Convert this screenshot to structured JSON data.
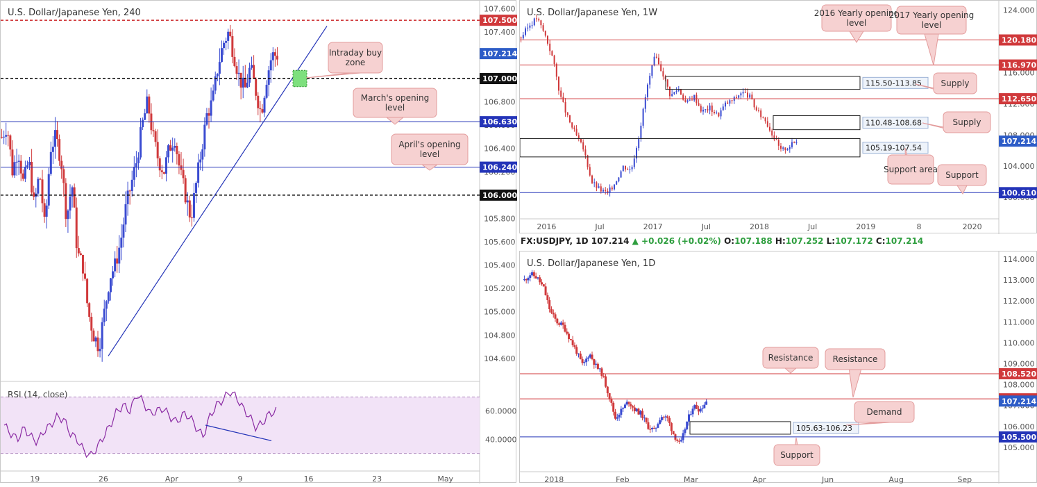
{
  "colors": {
    "up": "#3a4bd1",
    "down": "#d0393b",
    "red_line": "#d0393b",
    "blue_line": "#2434b8",
    "black_line": "#111111",
    "price_tag": "#2d5cc7",
    "rsi_line": "#8a2aa3",
    "rsi_bg": "#f2e3f7",
    "callout_bg": "#f6d1d1",
    "callout_border": "#e39c9c",
    "green_zone": "#7ee07e"
  },
  "ticker": {
    "symbol": "FX:USDJPY, 1D",
    "last": "107.214",
    "change": "▲ +0.026 (+0.02%)",
    "o_label": "O:",
    "o": "107.188",
    "h_label": "H:",
    "h": "107.252",
    "l_label": "L:",
    "l": "107.172",
    "c_label": "C:",
    "c": "107.214"
  },
  "chart_data": [
    {
      "type": "candlestick",
      "title": "U.S. Dollar/Japanese Yen, 240",
      "ylim": [
        104.45,
        107.62
      ],
      "y_ticks": [
        "107.600",
        "107.400",
        "107.200",
        "107.000",
        "106.800",
        "106.600",
        "106.400",
        "106.200",
        "106.000",
        "105.800",
        "105.600",
        "105.400",
        "105.200",
        "105.000",
        "104.800",
        "104.600"
      ],
      "x_ticks": [
        "19",
        "26",
        "Apr",
        "9",
        "16",
        "23",
        "May"
      ],
      "levels": [
        {
          "value": 107.5,
          "label": "107.500",
          "style": "red-dashed"
        },
        {
          "value": 107.0,
          "label": "107.000",
          "style": "black-dashed"
        },
        {
          "value": 106.63,
          "label": "106.630",
          "style": "blue"
        },
        {
          "value": 106.24,
          "label": "106.240",
          "style": "blue"
        },
        {
          "value": 106.0,
          "label": "106.000",
          "style": "black-dashed"
        }
      ],
      "current_price": "107.214",
      "annotations": [
        "Intraday buy zone",
        "March's opening level",
        "April's opening level"
      ],
      "rsi": {
        "label": "RSI (14, close)",
        "ticks": [
          "60.0000",
          "40.0000"
        ],
        "overbought": 70,
        "oversold": 30
      },
      "ohlc_approx": [
        106.5,
        106.6,
        106.2,
        106.4,
        106.1,
        106.3,
        105.9,
        106.2,
        105.7,
        106.4,
        106.5,
        106.3,
        105.8,
        106.1,
        105.5,
        105.4,
        105.0,
        104.8,
        104.7,
        105.0,
        105.3,
        105.4,
        105.6,
        105.9,
        106.1,
        106.3,
        106.6,
        106.8,
        106.5,
        106.3,
        106.2,
        106.4,
        106.5,
        106.2,
        106.0,
        105.8,
        106.1,
        106.4,
        106.7,
        106.8,
        107.1,
        107.3,
        107.4,
        107.2,
        107.0,
        106.9,
        107.1,
        106.9,
        106.7,
        107.0,
        107.2,
        107.2
      ]
    },
    {
      "type": "candlestick",
      "title": "U.S. Dollar/Japanese Yen, 1W",
      "ylim": [
        98.5,
        124.5
      ],
      "y_ticks": [
        "124.000",
        "120.000",
        "116.000",
        "112.000",
        "108.000",
        "104.000",
        "100.000"
      ],
      "x_ticks": [
        "2016",
        "Jul",
        "2017",
        "Jul",
        "2018",
        "Jul",
        "2019",
        "8",
        "2020"
      ],
      "levels": [
        {
          "value": 120.18,
          "label": "120.180",
          "style": "red"
        },
        {
          "value": 116.97,
          "label": "116.970",
          "style": "red"
        },
        {
          "value": 112.65,
          "label": "112.650",
          "style": "red"
        },
        {
          "value": 100.61,
          "label": "100.610",
          "style": "blue"
        }
      ],
      "zones": [
        {
          "label": "115.50-113.85"
        },
        {
          "label": "110.48-108.68"
        },
        {
          "label": "105.19-107.54"
        }
      ],
      "current_price": "107.214",
      "annotations": [
        "2016 Yearly opening level",
        "2017 Yearly opening level",
        "Supply",
        "Supply",
        "Support area",
        "Support"
      ]
    },
    {
      "type": "candlestick",
      "title": "U.S. Dollar/Japanese Yen, 1D",
      "ylim": [
        104.4,
        114.1
      ],
      "y_ticks": [
        "114.000",
        "113.000",
        "112.000",
        "111.000",
        "110.000",
        "109.000",
        "108.000",
        "107.000",
        "106.000",
        "105.000"
      ],
      "x_ticks": [
        "2018",
        "Feb",
        "Mar",
        "Apr",
        "Jun",
        "Aug",
        "Sep"
      ],
      "levels": [
        {
          "value": 108.52,
          "label": "108.520",
          "style": "red"
        },
        {
          "value": 107.32,
          "label": "107.320",
          "style": "red"
        },
        {
          "value": 105.5,
          "label": "105.500",
          "style": "blue"
        }
      ],
      "zones": [
        {
          "label": "105.63-106.23"
        }
      ],
      "current_price": "107.214",
      "annotations": [
        "Resistance",
        "Resistance",
        "Demand",
        "Support"
      ]
    }
  ]
}
